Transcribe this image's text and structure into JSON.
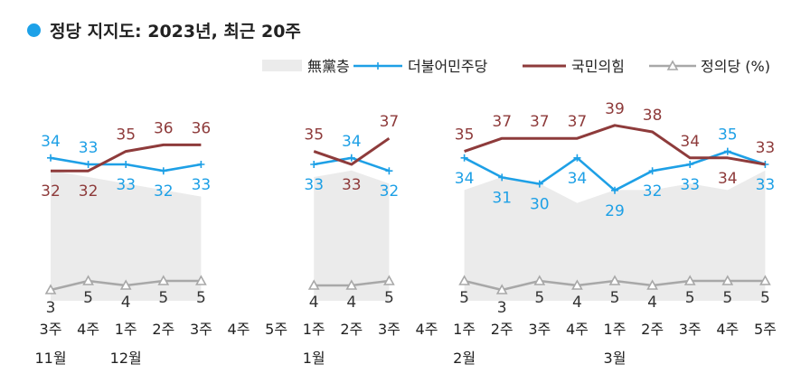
{
  "chart_data": {
    "type": "line",
    "title": "정당 지지도: 2023년, 최근 20주",
    "categories": [
      "3주",
      "4주",
      "1주",
      "2주",
      "3주",
      "4주",
      "5주",
      "1주",
      "2주",
      "3주",
      "4주",
      "1주",
      "2주",
      "3주",
      "4주",
      "1주",
      "2주",
      "3주",
      "4주",
      "5주"
    ],
    "month_labels": [
      {
        "index": 0,
        "label": "11월"
      },
      {
        "index": 2,
        "label": "12월"
      },
      {
        "index": 7,
        "label": "1월"
      },
      {
        "index": 11,
        "label": "2월"
      },
      {
        "index": 15,
        "label": "3월"
      }
    ],
    "legend_placement": "top-right",
    "series": [
      {
        "name": "無黨층",
        "kind": "area",
        "color": "#ebebeb",
        "values": [
          34,
          33,
          32,
          31,
          30,
          null,
          null,
          33,
          34,
          32,
          null,
          31,
          33,
          32,
          29,
          31,
          31,
          32,
          31,
          34
        ]
      },
      {
        "name": "더불어민주당",
        "kind": "line",
        "color": "#1ea0e6",
        "values": [
          34,
          33,
          33,
          32,
          33,
          null,
          null,
          33,
          34,
          32,
          null,
          34,
          31,
          30,
          34,
          29,
          32,
          33,
          35,
          33
        ]
      },
      {
        "name": "국민의힘",
        "kind": "line",
        "color": "#8e3b3b",
        "values": [
          32,
          32,
          35,
          36,
          36,
          null,
          null,
          35,
          33,
          37,
          null,
          35,
          37,
          37,
          37,
          39,
          38,
          34,
          34,
          33
        ]
      },
      {
        "name": "정의당 (%)",
        "kind": "line",
        "color": "#a8a8a8",
        "values": [
          3,
          5,
          4,
          5,
          5,
          null,
          null,
          4,
          4,
          5,
          null,
          5,
          3,
          5,
          4,
          5,
          4,
          5,
          5,
          5
        ]
      }
    ]
  },
  "colors": {
    "title_dot": "#1da1e8",
    "text": "#222222"
  }
}
